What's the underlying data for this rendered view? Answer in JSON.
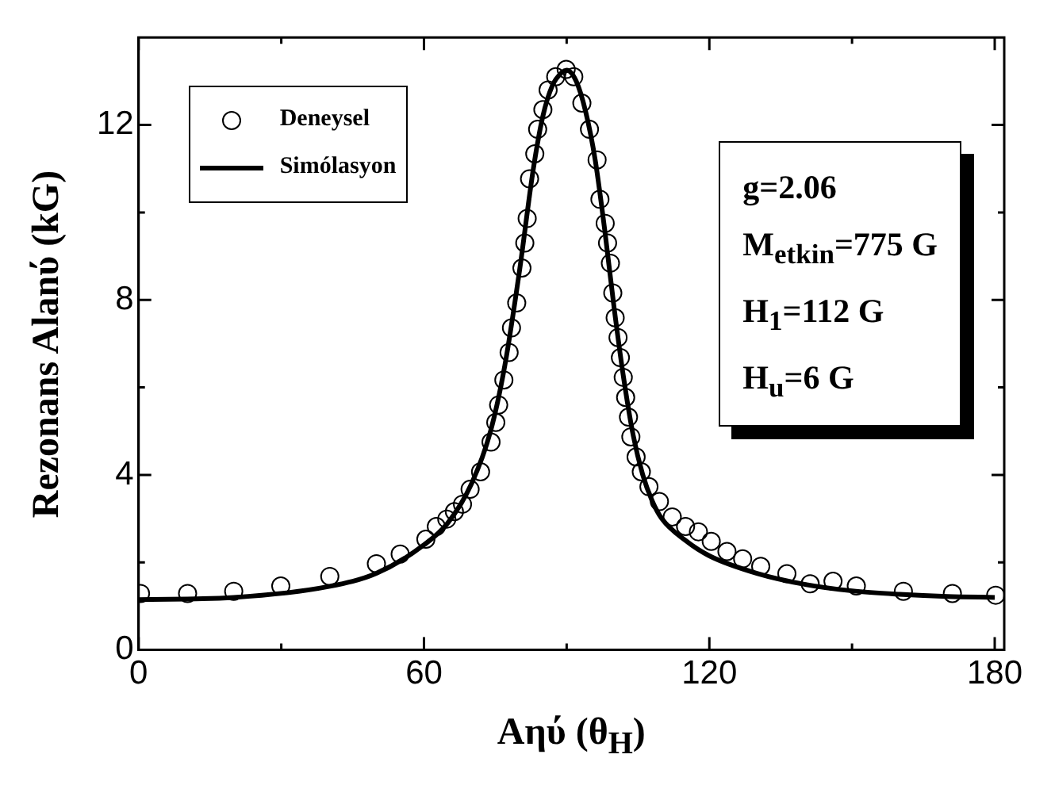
{
  "chart_data": {
    "type": "scatter",
    "xlabel": "Aηύ (θ$_{H}$)",
    "ylabel": "Rezonans Alanύ (kG)",
    "legend": "top left",
    "xlim": [
      0,
      182
    ],
    "xticks": [
      0,
      {
        "value": 30,
        "label": null
      },
      60,
      {
        "value": 90,
        "label": null
      },
      120,
      {
        "value": 150,
        "label": null
      },
      180
    ],
    "ylim": [
      0,
      14
    ],
    "yticks": [
      0,
      {
        "value": 2,
        "label": null
      },
      4,
      {
        "value": 6,
        "label": null
      },
      8,
      {
        "value": 10,
        "label": null
      },
      12
    ],
    "annotations": [
      "g=2.06",
      "M$_{etkin}$=775 G",
      "H$_{1}$=112 G",
      "H$_{u}$=6 G"
    ],
    "series": [
      {
        "name": "Deneysel",
        "marker": "circle",
        "color": "#000000",
        "x": [
          0.4,
          10.3,
          20,
          29.9,
          40.2,
          50,
          55,
          60.4,
          62.6,
          64.8,
          66.4,
          68.1,
          69.7,
          71.9,
          74.1,
          75.1,
          75.7,
          76.8,
          77.9,
          78.4,
          79.5,
          80.6,
          81.2,
          81.7,
          82.2,
          83.3,
          83.9,
          85,
          86.1,
          87.7,
          89.9,
          91.5,
          93.2,
          94.8,
          96.4,
          97,
          98.1,
          98.6,
          99.2,
          99.7,
          100.2,
          100.8,
          101.3,
          101.9,
          102.4,
          103,
          103.5,
          104.6,
          105.7,
          107.3,
          109.5,
          112.2,
          115,
          117.7,
          120.4,
          123.7,
          127,
          130.8,
          136.3,
          141.2,
          146,
          150.9,
          160.8,
          171.1,
          180.2
        ],
        "values": [
          1.29,
          1.29,
          1.34,
          1.46,
          1.68,
          1.97,
          2.19,
          2.53,
          2.82,
          2.99,
          3.16,
          3.33,
          3.67,
          4.07,
          4.75,
          5.2,
          5.6,
          6.17,
          6.8,
          7.36,
          7.93,
          8.73,
          9.3,
          9.86,
          10.77,
          11.34,
          11.9,
          12.35,
          12.8,
          13.1,
          13.27,
          13.1,
          12.5,
          11.9,
          11.2,
          10.3,
          9.75,
          9.3,
          8.84,
          8.16,
          7.59,
          7.14,
          6.68,
          6.23,
          5.77,
          5.32,
          4.87,
          4.41,
          4.07,
          3.73,
          3.39,
          3.04,
          2.82,
          2.7,
          2.48,
          2.25,
          2.08,
          1.91,
          1.74,
          1.51,
          1.57,
          1.46,
          1.34,
          1.29,
          1.25
        ]
      },
      {
        "name": "Simólasyon",
        "type": "line",
        "marker": "none",
        "line_style": "solid",
        "color": "#000000",
        "x": [
          0,
          20,
          40,
          50,
          60,
          65,
          70,
          74,
          77,
          80,
          83,
          85,
          87,
          89,
          90,
          92,
          94,
          96,
          98,
          100,
          102,
          104,
          106,
          108,
          110,
          115,
          120,
          130,
          140,
          150,
          160,
          170,
          180
        ],
        "values": [
          1.15,
          1.2,
          1.45,
          1.75,
          2.4,
          2.9,
          3.8,
          5.0,
          6.5,
          8.6,
          11.0,
          12.2,
          12.9,
          13.2,
          13.25,
          13.0,
          12.3,
          11.2,
          9.6,
          7.8,
          6.2,
          4.9,
          4.0,
          3.4,
          3.0,
          2.5,
          2.15,
          1.75,
          1.5,
          1.35,
          1.27,
          1.22,
          1.2
        ]
      }
    ]
  }
}
